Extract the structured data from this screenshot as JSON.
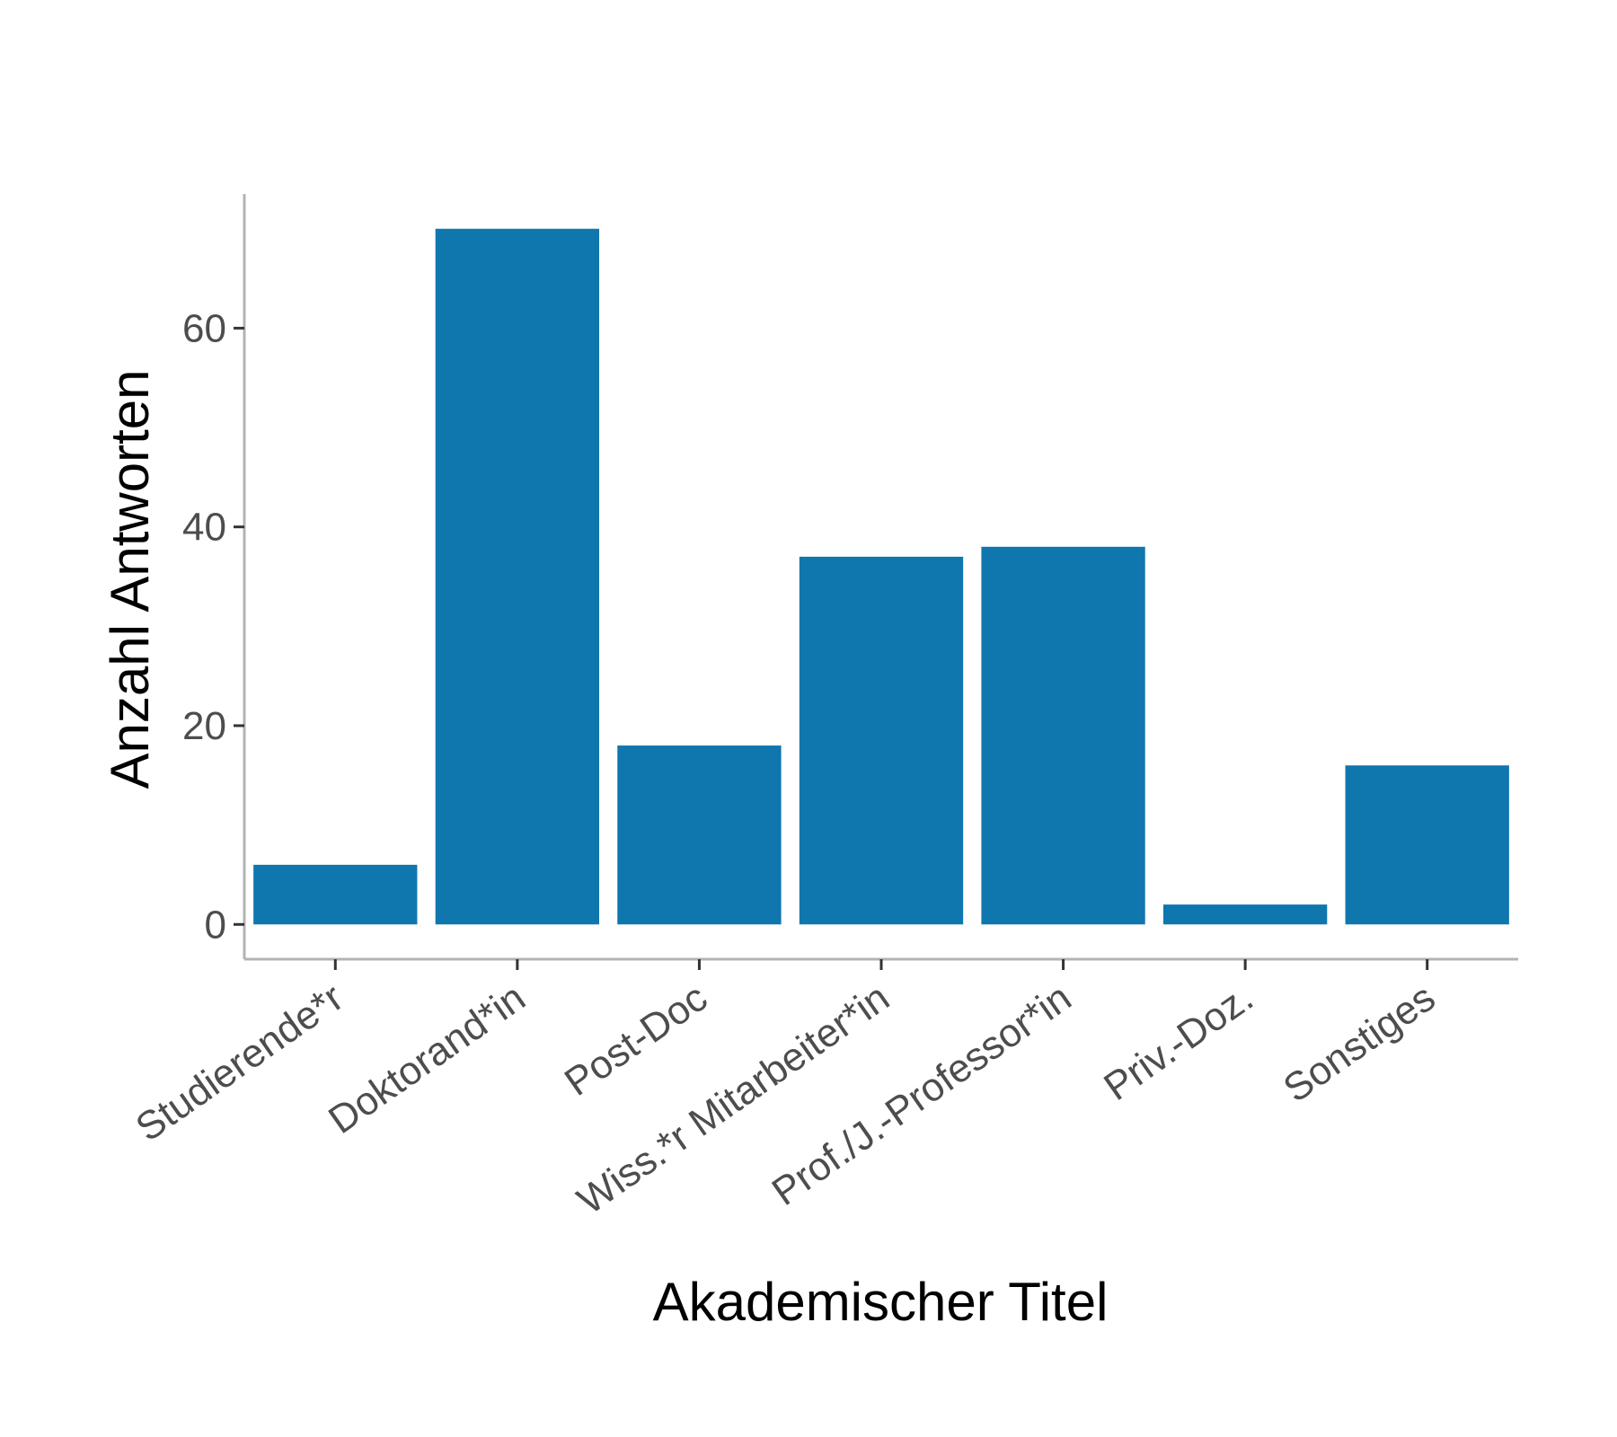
{
  "chart_data": {
    "type": "bar",
    "title": "",
    "xlabel": "Akademischer Titel",
    "ylabel": "Anzahl Antworten",
    "categories": [
      "Studierende*r",
      "Doktorand*in",
      "Post-Doc",
      "Wiss.*r Mitarbeiter*in",
      "Prof./J.-Professor*in",
      "Priv.-Doz.",
      "Sonstiges"
    ],
    "values": [
      6,
      70,
      18,
      37,
      38,
      2,
      16
    ],
    "ylim": [
      -3.5,
      73.5
    ],
    "yticks": [
      0,
      20,
      40,
      60
    ],
    "bar_color": "#1076AE",
    "axis_color": "#B3B3B3",
    "grid": false,
    "legend": "none"
  }
}
